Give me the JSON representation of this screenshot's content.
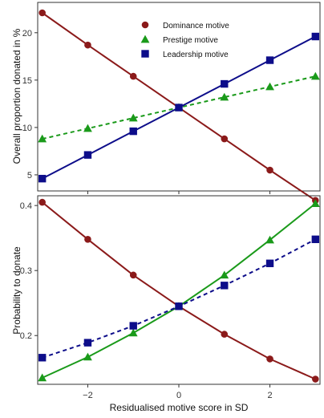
{
  "chart_data": [
    {
      "type": "line",
      "xlabel": "",
      "ylabel": "Overall proportion donated in %",
      "xlim": [
        -3.1,
        3.1
      ],
      "ylim": [
        3.3,
        23.2
      ],
      "xticks": [
        -2,
        0,
        2
      ],
      "show_xtick_labels": false,
      "yticks": [
        5,
        10,
        15,
        20
      ],
      "grid": false,
      "legend": "top-center",
      "x": [
        -3,
        -2,
        -1,
        0,
        1,
        2,
        3
      ],
      "series": [
        {
          "name": "Dominance motive",
          "color": "#8b1a1a",
          "line": "solid",
          "marker": "circle",
          "values": [
            22.1,
            18.7,
            15.4,
            12.1,
            8.8,
            5.5,
            2.3
          ]
        },
        {
          "name": "Prestige motive",
          "color": "#1a9a1a",
          "line": "dashed",
          "marker": "triangle",
          "values": [
            8.8,
            9.9,
            11.0,
            12.1,
            13.2,
            14.3,
            15.4
          ]
        },
        {
          "name": "Leadership motive",
          "color": "#0d0d8a",
          "line": "solid",
          "marker": "square",
          "values": [
            4.6,
            7.1,
            9.6,
            12.1,
            14.6,
            17.1,
            19.6
          ]
        }
      ]
    },
    {
      "type": "line",
      "xlabel": "Residualised motive score in SD",
      "ylabel": "Probability to donate",
      "xlim": [
        -3.1,
        3.1
      ],
      "ylim": [
        0.125,
        0.415
      ],
      "xticks": [
        -2,
        0,
        2
      ],
      "show_xtick_labels": true,
      "yticks": [
        0.2,
        0.3,
        0.4
      ],
      "grid": false,
      "x": [
        -3,
        -2,
        -1,
        0,
        1,
        2,
        3
      ],
      "series": [
        {
          "name": "Dominance motive",
          "color": "#8b1a1a",
          "line": "solid",
          "marker": "circle",
          "values": [
            0.405,
            0.348,
            0.293,
            0.245,
            0.202,
            0.164,
            0.133
          ]
        },
        {
          "name": "Prestige motive",
          "color": "#1a9a1a",
          "line": "solid",
          "marker": "triangle",
          "values": [
            0.135,
            0.167,
            0.204,
            0.245,
            0.293,
            0.347,
            0.403
          ]
        },
        {
          "name": "Leadership motive",
          "color": "#0d0d8a",
          "line": "dashed",
          "marker": "square",
          "values": [
            0.166,
            0.189,
            0.215,
            0.245,
            0.277,
            0.311,
            0.348
          ]
        }
      ]
    }
  ]
}
